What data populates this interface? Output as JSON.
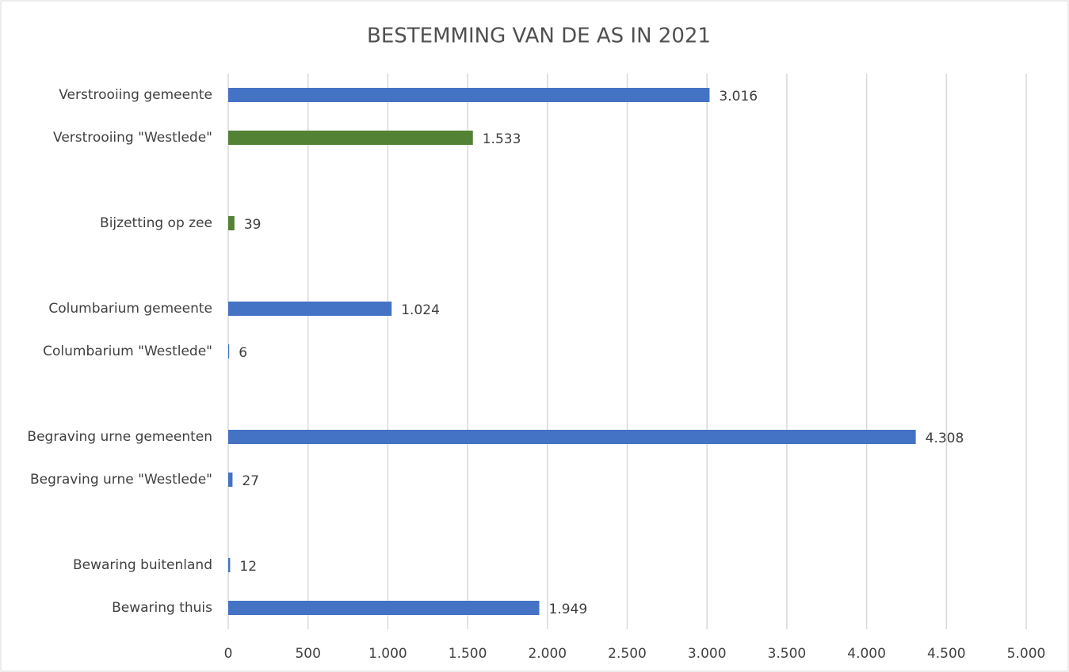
{
  "chart_data": {
    "type": "hbar",
    "title": "BESTEMMING VAN DE AS IN 2021",
    "categories": [
      "Verstrooiing gemeente",
      "Verstrooiing \"Westlede\"",
      null,
      "Bijzetting op zee",
      null,
      "Columbarium gemeente",
      "Columbarium \"Westlede\"",
      null,
      "Begraving urne gemeenten",
      "Begraving urne \"Westlede\"",
      null,
      "Bewaring buitenland",
      "Bewaring thuis"
    ],
    "values": [
      3016,
      1533,
      null,
      39,
      null,
      1024,
      6,
      null,
      4308,
      27,
      null,
      12,
      1949
    ],
    "value_labels": [
      "3.016",
      "1.533",
      null,
      "39",
      null,
      "1.024",
      "6",
      null,
      "4.308",
      "27",
      null,
      "12",
      "1.949"
    ],
    "colors": [
      "#4472c4",
      "#548235",
      null,
      "#548235",
      null,
      "#4472c4",
      "#4472c4",
      null,
      "#4472c4",
      "#4472c4",
      null,
      "#4472c4",
      "#4472c4"
    ],
    "xlim": [
      0,
      5000
    ],
    "xticks": [
      0,
      500,
      {
        "value": 1000,
        "label": "1.000"
      },
      {
        "value": 1500,
        "label": "1.500"
      },
      {
        "value": 2000,
        "label": "2.000"
      },
      {
        "value": 2500,
        "label": "2.500"
      },
      {
        "value": 3000,
        "label": "3.000"
      },
      {
        "value": 3500,
        "label": "3.500"
      },
      {
        "value": 4000,
        "label": "4.000"
      },
      {
        "value": 4500,
        "label": "4.500"
      },
      {
        "value": 5000,
        "label": "5.000"
      }
    ],
    "grid": true
  }
}
